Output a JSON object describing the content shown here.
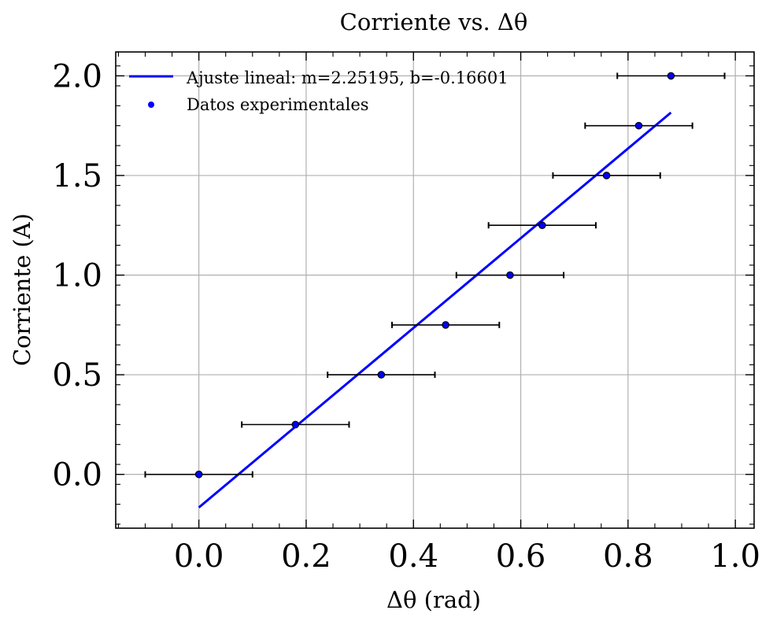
{
  "chart_data": {
    "type": "scatter",
    "title": "Corriente vs. Δθ",
    "xlabel": "Δθ (rad)",
    "ylabel": "Corriente (A)",
    "xlim": [
      -0.155,
      1.035
    ],
    "ylim": [
      -0.27,
      2.12
    ],
    "x_ticks": [
      0.0,
      0.2,
      0.4,
      0.6,
      0.8,
      1.0
    ],
    "x_tick_labels": [
      "0.0",
      "0.2",
      "0.4",
      "0.6",
      "0.8",
      "1.0"
    ],
    "y_ticks": [
      0.0,
      0.5,
      1.0,
      1.5,
      2.0
    ],
    "y_tick_labels": [
      "0.0",
      "0.5",
      "1.0",
      "1.5",
      "2.0"
    ],
    "grid": true,
    "legend_position": "top-left",
    "series": [
      {
        "name": "Ajuste lineal: m=2.25195, b=-0.16601",
        "kind": "line",
        "color": "#0000ff",
        "x": [
          0.0,
          0.88
        ],
        "y": [
          -0.16601,
          1.81571
        ]
      },
      {
        "name": "Datos experimentales",
        "kind": "scatter",
        "color": "#0000ff",
        "x": [
          0.0,
          0.18,
          0.34,
          0.46,
          0.58,
          0.64,
          0.76,
          0.82,
          0.88
        ],
        "y": [
          0.0,
          0.25,
          0.5,
          0.75,
          1.0,
          1.25,
          1.5,
          1.75,
          2.0
        ],
        "x_error": 0.1,
        "error_color": "#000000"
      }
    ]
  }
}
